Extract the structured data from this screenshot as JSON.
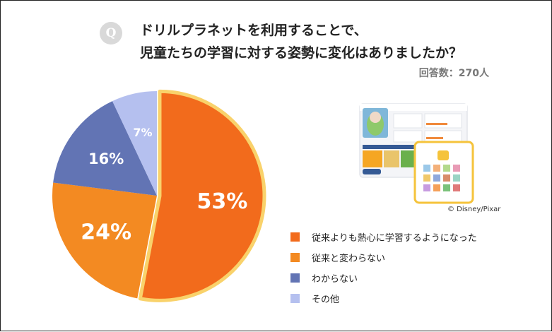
{
  "question": {
    "badge": "Q",
    "line1": "ドリルプラネットを利用することで、",
    "line2": "児童たちの学習に対する姿勢に変化はありましたか？"
  },
  "responses_label": "回答数：270人",
  "credit": "© Disney/Pixar",
  "colors": {
    "slice1": "#f26b1c",
    "slice2": "#f38a22",
    "slice3": "#6274b4",
    "slice4": "#b5c0ef",
    "highlight": "#f9d26b"
  },
  "chart_data": {
    "type": "pie",
    "categories": [
      "従来よりも熱心に学習するようになった",
      "従来と変わらない",
      "わからない",
      "その他"
    ],
    "values": [
      53,
      24,
      16,
      7
    ],
    "labels": [
      "53%",
      "24%",
      "16%",
      "7%"
    ],
    "colors": [
      "#f26b1c",
      "#f38a22",
      "#6274b4",
      "#b5c0ef"
    ],
    "legend": "bottom-right",
    "exploded": "従来よりも熱心に学習するようになった"
  }
}
